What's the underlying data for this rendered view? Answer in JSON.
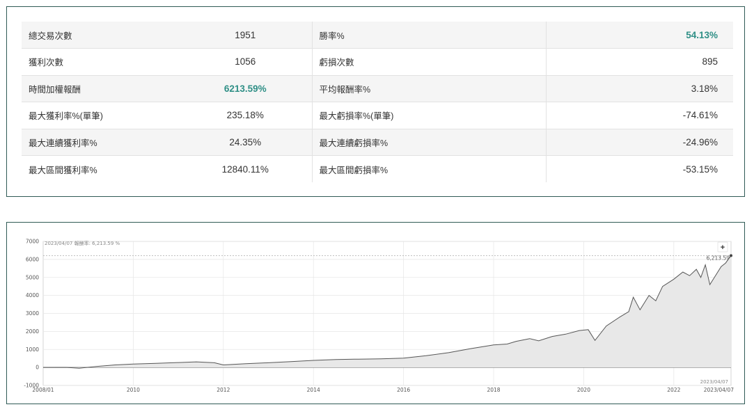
{
  "stats": {
    "rows": [
      {
        "l1": "總交易次數",
        "v1": "1951",
        "l2": "勝率%",
        "v2": "54.13%",
        "hl1": false,
        "hl2": true
      },
      {
        "l1": "獲利次數",
        "v1": "1056",
        "l2": "虧損次數",
        "v2": "895",
        "hl1": false,
        "hl2": false
      },
      {
        "l1": "時間加權報酬",
        "v1": "6213.59%",
        "l2": "平均報酬率%",
        "v2": "3.18%",
        "hl1": true,
        "hl2": false
      },
      {
        "l1": "最大獲利率%(單筆)",
        "v1": "235.18%",
        "l2": "最大虧損率%(單筆)",
        "v2": "-74.61%",
        "hl1": false,
        "hl2": false
      },
      {
        "l1": "最大連續獲利率%",
        "v1": "24.35%",
        "l2": "最大連續虧損率%",
        "v2": "-24.96%",
        "hl1": false,
        "hl2": false
      },
      {
        "l1": "最大區間獲利率%",
        "v1": "12840.11%",
        "l2": "最大區間虧損率%",
        "v2": "-53.15%",
        "hl1": false,
        "hl2": false
      }
    ]
  },
  "chart_header": "2023/04/07  報酬率: 6,213.59 %",
  "chart_last_label": "6,213.59",
  "chart_end_date": "2023/04/07",
  "zoom_label": "+",
  "colors": {
    "accent": "#2f8f86",
    "border": "#2f5a55",
    "line": "#555555",
    "fill": "#e8e8e8"
  },
  "chart_data": {
    "type": "area",
    "x_start": "2008/01",
    "x_end": "2023/04/07",
    "xticks": [
      {
        "t": 2008.0,
        "label": "2008/01"
      },
      {
        "t": 2010.0,
        "label": "2010"
      },
      {
        "t": 2012.0,
        "label": "2012"
      },
      {
        "t": 2014.0,
        "label": "2014"
      },
      {
        "t": 2016.0,
        "label": "2016"
      },
      {
        "t": 2018.0,
        "label": "2018"
      },
      {
        "t": 2020.0,
        "label": "2020"
      },
      {
        "t": 2022.0,
        "label": "2022"
      },
      {
        "t": 2023.27,
        "label": "2023/04/07"
      }
    ],
    "ylim": [
      -1000,
      7000
    ],
    "yticks": [
      -1000,
      0,
      1000,
      2000,
      3000,
      4000,
      5000,
      6000,
      7000
    ],
    "reference_line": 6213.59,
    "series": [
      {
        "points": [
          [
            2008.0,
            0
          ],
          [
            2008.5,
            5
          ],
          [
            2008.8,
            -40
          ],
          [
            2009.2,
            60
          ],
          [
            2009.6,
            140
          ],
          [
            2010.0,
            190
          ],
          [
            2010.5,
            230
          ],
          [
            2011.0,
            270
          ],
          [
            2011.4,
            310
          ],
          [
            2011.8,
            260
          ],
          [
            2012.0,
            140
          ],
          [
            2012.5,
            210
          ],
          [
            2013.0,
            260
          ],
          [
            2013.5,
            320
          ],
          [
            2014.0,
            390
          ],
          [
            2014.5,
            440
          ],
          [
            2015.0,
            460
          ],
          [
            2015.5,
            480
          ],
          [
            2016.0,
            520
          ],
          [
            2016.5,
            650
          ],
          [
            2017.0,
            820
          ],
          [
            2017.5,
            1050
          ],
          [
            2018.0,
            1250
          ],
          [
            2018.3,
            1300
          ],
          [
            2018.5,
            1450
          ],
          [
            2018.8,
            1600
          ],
          [
            2019.0,
            1480
          ],
          [
            2019.3,
            1720
          ],
          [
            2019.6,
            1850
          ],
          [
            2019.9,
            2050
          ],
          [
            2020.1,
            2100
          ],
          [
            2020.25,
            1500
          ],
          [
            2020.5,
            2300
          ],
          [
            2020.8,
            2800
          ],
          [
            2021.0,
            3100
          ],
          [
            2021.1,
            3900
          ],
          [
            2021.25,
            3200
          ],
          [
            2021.45,
            4000
          ],
          [
            2021.6,
            3700
          ],
          [
            2021.75,
            4500
          ],
          [
            2022.0,
            4900
          ],
          [
            2022.2,
            5300
          ],
          [
            2022.35,
            5100
          ],
          [
            2022.5,
            5450
          ],
          [
            2022.6,
            5000
          ],
          [
            2022.7,
            5700
          ],
          [
            2022.8,
            4600
          ],
          [
            2022.95,
            5200
          ],
          [
            2023.05,
            5600
          ],
          [
            2023.15,
            5800
          ],
          [
            2023.27,
            6213.59
          ]
        ]
      }
    ]
  }
}
